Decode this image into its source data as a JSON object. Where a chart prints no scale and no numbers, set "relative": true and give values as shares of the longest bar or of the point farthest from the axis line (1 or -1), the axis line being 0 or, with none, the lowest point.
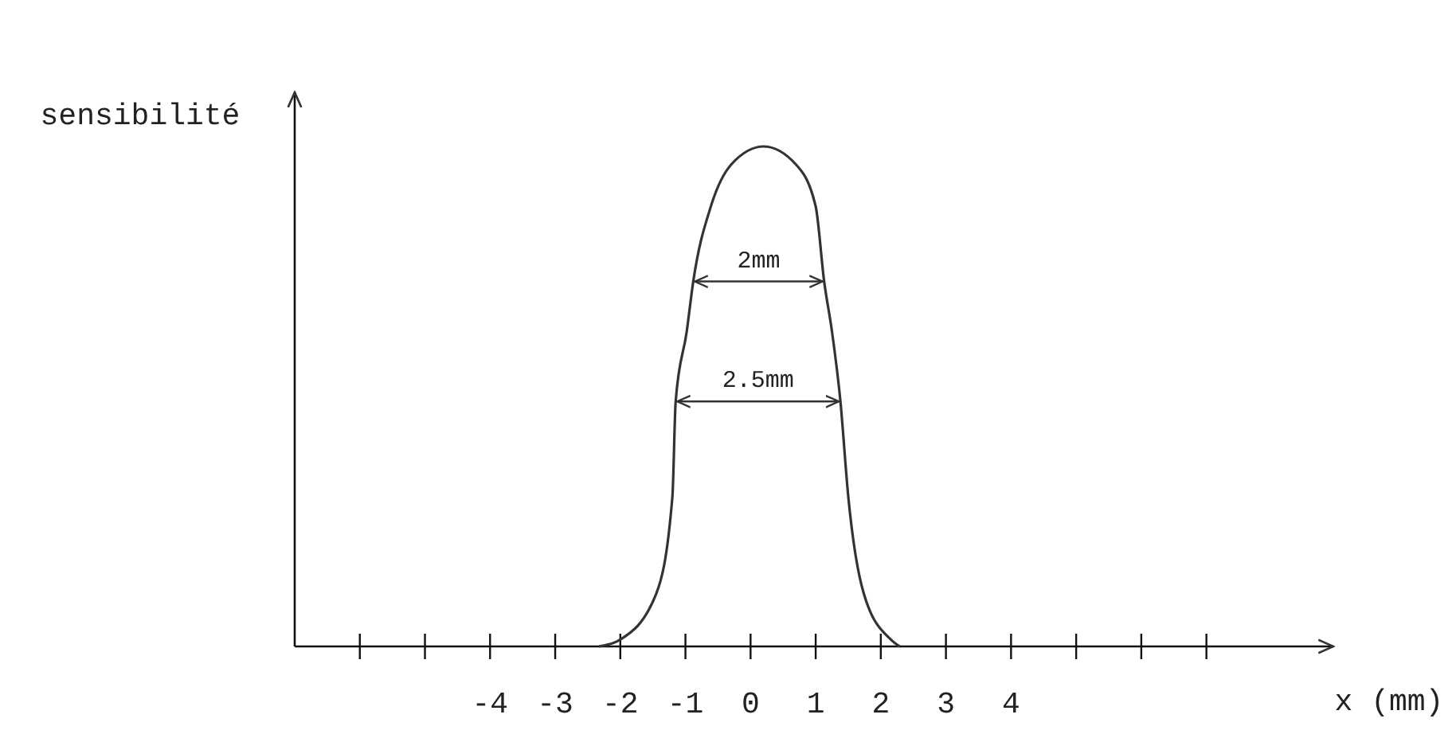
{
  "chart_data": {
    "type": "line",
    "relative": true,
    "xlabel": "x (mm)",
    "ylabel": "sensibilité",
    "xlim": [
      -7,
      8.9
    ],
    "xticks": [
      {
        "value": -6,
        "label": null
      },
      {
        "value": -5,
        "label": null
      },
      -4,
      -3,
      -2,
      -1,
      0,
      1,
      2,
      3,
      4,
      {
        "value": 5,
        "label": null
      },
      {
        "value": 6,
        "label": null
      },
      {
        "value": 7,
        "label": null
      }
    ],
    "x": [
      -2.33,
      -2.01,
      -1.45,
      -1.2,
      -1.15,
      -0.98,
      -0.88,
      -0.61,
      -0.29,
      0.2,
      0.69,
      1.0,
      1.13,
      1.25,
      1.38,
      1.5,
      1.74,
      2.16,
      2.29
    ],
    "series": [
      {
        "color": "#333333",
        "values": [
          0,
          0.013,
          0.105,
          0.3,
          0.49,
          0.63,
          0.73,
          0.88,
          0.965,
          1,
          0.965,
          0.88,
          0.73,
          0.63,
          0.49,
          0.3,
          0.105,
          0.013,
          0
        ]
      }
    ],
    "annotations": [
      {
        "text": "2mm",
        "x": -0.88,
        "y": 0.73
      },
      {
        "text": "2.5mm",
        "x": -1.15,
        "y": 0.49
      }
    ]
  }
}
